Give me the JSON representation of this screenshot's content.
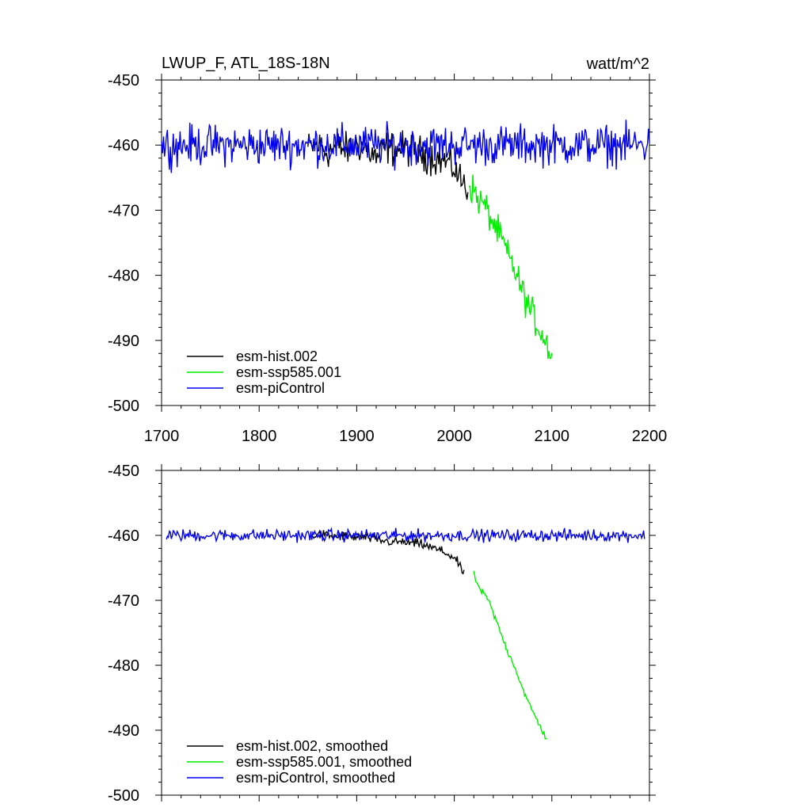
{
  "header": {
    "left_title": "LWUP_F, ATL_18S-18N",
    "right_units": "watt/m^2"
  },
  "chart_data": [
    {
      "type": "line",
      "panel": "annual",
      "xlim": [
        1700,
        2200
      ],
      "ylim": [
        -500,
        -450
      ],
      "x_ticks": [
        1700,
        1800,
        1900,
        2000,
        2100,
        2200
      ],
      "x_tick_labels": [
        "1700",
        "1800",
        "1900",
        "2000",
        "2100",
        "2200"
      ],
      "y_ticks": [
        -450,
        -460,
        -470,
        -480,
        -490,
        -500
      ],
      "y_tick_labels": [
        "-450",
        "-460",
        "-470",
        "-480",
        "-490",
        "-500"
      ],
      "grid": false,
      "legend_position": "bottom-left",
      "series": [
        {
          "name": "esm-hist.002",
          "color": "#000000",
          "x": [
            1850,
            1860,
            1870,
            1880,
            1890,
            1900,
            1910,
            1920,
            1930,
            1940,
            1950,
            1960,
            1970,
            1980,
            1990,
            2000,
            2005,
            2010,
            2014
          ],
          "y": [
            -460.5,
            -460.0,
            -461.0,
            -460.2,
            -460.8,
            -459.8,
            -460.5,
            -462.0,
            -460.3,
            -460.7,
            -460.5,
            -461.0,
            -461.5,
            -462.0,
            -462.5,
            -463.5,
            -465.0,
            -466.0,
            -467.0
          ],
          "noise": 1.3
        },
        {
          "name": "esm-ssp585.001",
          "color": "#00ee00",
          "x": [
            2015,
            2020,
            2025,
            2030,
            2035,
            2040,
            2045,
            2050,
            2055,
            2060,
            2065,
            2070,
            2075,
            2080,
            2085,
            2090,
            2095,
            2100
          ],
          "y": [
            -466.0,
            -467.0,
            -468.5,
            -469.0,
            -470.5,
            -472.0,
            -473.5,
            -475.0,
            -477.0,
            -478.5,
            -480.5,
            -482.5,
            -484.5,
            -486.0,
            -487.5,
            -489.0,
            -490.5,
            -492.0
          ],
          "noise": 1.2
        },
        {
          "name": "esm-piControl",
          "color": "#0000ee",
          "x": [
            1700,
            1750,
            1800,
            1850,
            1900,
            1950,
            2000,
            2050,
            2100,
            2150,
            2200
          ],
          "y": [
            -460.0,
            -460.0,
            -460.0,
            -460.0,
            -460.0,
            -460.0,
            -460.0,
            -460.0,
            -460.0,
            -460.0,
            -460.0
          ],
          "noise": 1.5
        }
      ]
    },
    {
      "type": "line",
      "panel": "smoothed",
      "xlim": [
        1700,
        2200
      ],
      "ylim": [
        -500,
        -450
      ],
      "x_ticks": [
        1700,
        1800,
        1900,
        2000,
        2100,
        2200
      ],
      "y_ticks": [
        -450,
        -460,
        -470,
        -480,
        -490,
        -500
      ],
      "y_tick_labels": [
        "-450",
        "-460",
        "-470",
        "-480",
        "-490",
        "-500"
      ],
      "grid": false,
      "legend_position": "bottom-left",
      "series": [
        {
          "name": "esm-hist.002, smoothed",
          "color": "#000000",
          "x": [
            1855,
            1865,
            1875,
            1885,
            1895,
            1905,
            1915,
            1925,
            1935,
            1945,
            1955,
            1965,
            1975,
            1985,
            1995,
            2000,
            2005,
            2010
          ],
          "y": [
            -460.0,
            -459.8,
            -460.2,
            -460.0,
            -460.3,
            -460.2,
            -460.5,
            -460.8,
            -461.0,
            -461.0,
            -461.2,
            -461.3,
            -461.8,
            -462.3,
            -463.0,
            -463.5,
            -464.5,
            -466.0
          ],
          "noise": 0.35
        },
        {
          "name": "esm-ssp585.001, smoothed",
          "color": "#00ee00",
          "x": [
            2020,
            2025,
            2030,
            2035,
            2040,
            2045,
            2050,
            2055,
            2060,
            2065,
            2070,
            2075,
            2080,
            2085,
            2090,
            2095
          ],
          "y": [
            -466.0,
            -468.0,
            -469.0,
            -470.0,
            -472.0,
            -474.0,
            -476.0,
            -478.0,
            -479.5,
            -481.5,
            -483.5,
            -485.5,
            -487.0,
            -488.5,
            -490.0,
            -491.5
          ],
          "noise": 0.25
        },
        {
          "name": "esm-piControl, smoothed",
          "color": "#0000ee",
          "x": [
            1705,
            1750,
            1800,
            1850,
            1900,
            1950,
            2000,
            2050,
            2100,
            2150,
            2195
          ],
          "y": [
            -460.0,
            -460.0,
            -460.0,
            -460.0,
            -460.0,
            -460.0,
            -460.0,
            -460.0,
            -460.0,
            -460.0,
            -460.0
          ],
          "noise": 0.45
        }
      ]
    }
  ]
}
